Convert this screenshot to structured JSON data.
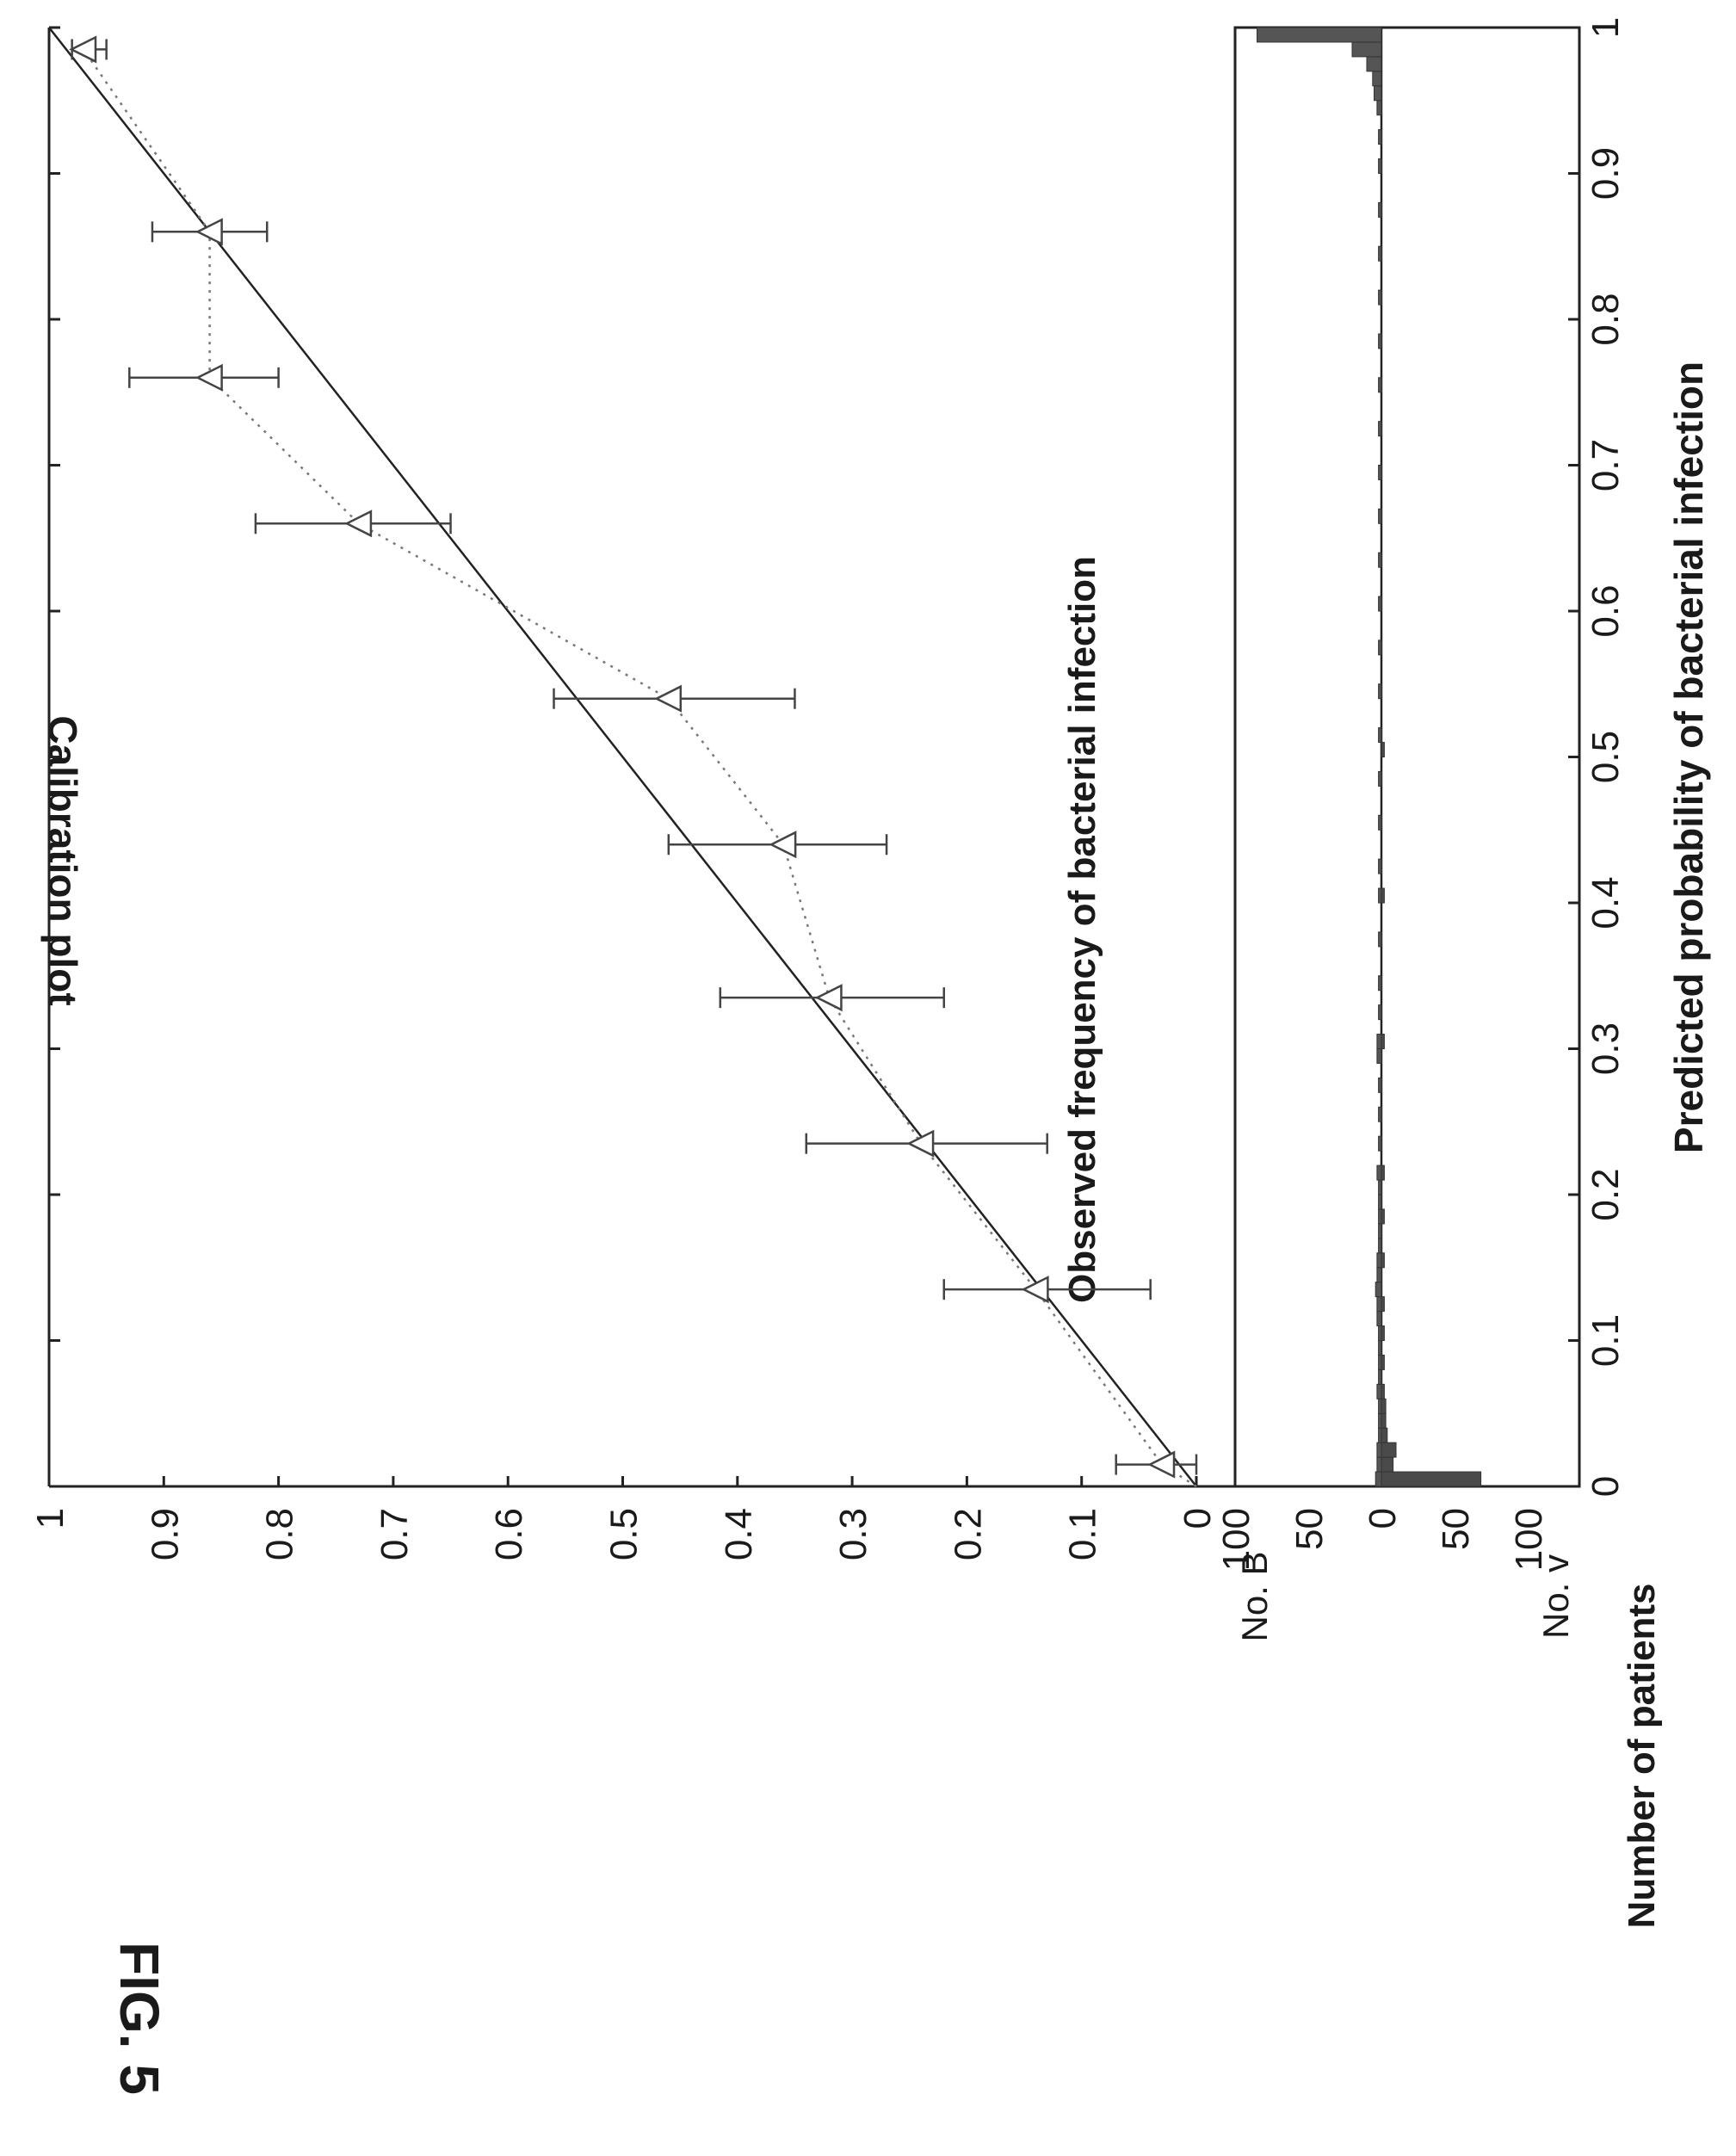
{
  "figure_label": "FIG. 5",
  "chart_data": [
    {
      "type": "line",
      "title": "Calibration plot",
      "xlabel": "Predicted probability of bacterial infection",
      "ylabel": "Observed frequency of bacterial infection",
      "xlim": [
        0,
        1
      ],
      "ylim": [
        0,
        1
      ],
      "x_ticks": [
        "0",
        "0.1",
        "0.2",
        "0.3",
        "0.4",
        "0.5",
        "0.6",
        "0.7",
        "0.8",
        "0.9",
        "1"
      ],
      "y_ticks": [
        "0",
        "0.1",
        "0.2",
        "0.3",
        "0.4",
        "0.5",
        "0.6",
        "0.7",
        "0.8",
        "0.9",
        "1"
      ],
      "grid": false,
      "reference_line": {
        "x": [
          0,
          1
        ],
        "y": [
          0,
          1
        ]
      },
      "series": [
        {
          "x": [
            0.015,
            0.135,
            0.235,
            0.335,
            0.44,
            0.54,
            0.66,
            0.76,
            0.86,
            0.985
          ],
          "y": [
            0.03,
            0.14,
            0.24,
            0.32,
            0.36,
            0.46,
            0.73,
            0.86,
            0.86,
            0.97
          ],
          "err_low": [
            0.0,
            0.04,
            0.13,
            0.22,
            0.27,
            0.35,
            0.65,
            0.8,
            0.81,
            0.95
          ],
          "err_high": [
            0.07,
            0.22,
            0.34,
            0.415,
            0.46,
            0.56,
            0.82,
            0.93,
            0.91,
            0.98
          ]
        }
      ]
    },
    {
      "type": "bar",
      "ylabel": "Number of patients",
      "xlim": [
        0,
        1
      ],
      "y_ticks": [
        "100",
        "50",
        "0",
        "50",
        "100"
      ],
      "bin_width": 0.01,
      "series": [
        {
          "name": "No. B",
          "x": [
            0.005,
            0.015,
            0.025,
            0.035,
            0.045,
            0.055,
            0.065,
            0.075,
            0.085,
            0.095,
            0.105,
            0.115,
            0.125,
            0.135,
            0.145,
            0.155,
            0.165,
            0.175,
            0.185,
            0.195,
            0.205,
            0.215,
            0.235,
            0.255,
            0.275,
            0.295,
            0.305,
            0.325,
            0.345,
            0.375,
            0.405,
            0.425,
            0.455,
            0.485,
            0.515,
            0.545,
            0.575,
            0.605,
            0.635,
            0.665,
            0.695,
            0.725,
            0.755,
            0.785,
            0.815,
            0.845,
            0.875,
            0.905,
            0.925,
            0.945,
            0.955,
            0.965,
            0.975,
            0.985,
            0.995
          ],
          "values": [
            4,
            3,
            3,
            2,
            2,
            2,
            3,
            2,
            2,
            2,
            2,
            3,
            3,
            4,
            3,
            3,
            2,
            2,
            2,
            2,
            2,
            3,
            2,
            2,
            2,
            3,
            3,
            2,
            2,
            2,
            2,
            2,
            2,
            2,
            2,
            2,
            2,
            2,
            2,
            2,
            2,
            2,
            2,
            2,
            2,
            2,
            2,
            2,
            2,
            3,
            5,
            6,
            10,
            20,
            85
          ]
        },
        {
          "name": "No. v",
          "x": [
            0.005,
            0.015,
            0.025,
            0.035,
            0.045,
            0.055,
            0.065,
            0.085,
            0.105,
            0.125,
            0.155,
            0.185,
            0.215,
            0.305,
            0.405,
            0.505
          ],
          "values": [
            68,
            8,
            10,
            4,
            3,
            3,
            2,
            2,
            2,
            2,
            2,
            2,
            2,
            2,
            2,
            2
          ]
        }
      ]
    }
  ]
}
